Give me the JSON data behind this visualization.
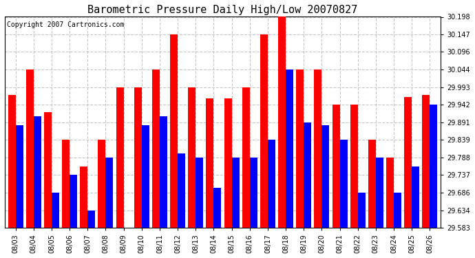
{
  "title": "Barometric Pressure Daily High/Low 20070827",
  "copyright": "Copyright 2007 Cartronics.com",
  "dates": [
    "08/03",
    "08/04",
    "08/05",
    "08/06",
    "08/07",
    "08/08",
    "08/09",
    "08/10",
    "08/11",
    "08/12",
    "08/13",
    "08/14",
    "08/15",
    "08/16",
    "08/17",
    "08/18",
    "08/19",
    "08/20",
    "08/21",
    "08/22",
    "08/23",
    "08/24",
    "08/25",
    "08/26"
  ],
  "highs": [
    29.97,
    30.044,
    29.921,
    29.839,
    29.762,
    29.839,
    29.993,
    29.993,
    30.044,
    30.147,
    29.993,
    29.96,
    29.96,
    29.993,
    30.147,
    30.198,
    30.044,
    30.044,
    29.942,
    29.942,
    29.839,
    29.788,
    29.965,
    29.97
  ],
  "lows": [
    29.883,
    29.908,
    29.686,
    29.737,
    29.634,
    29.788,
    29.583,
    29.883,
    29.908,
    29.8,
    29.788,
    29.7,
    29.788,
    29.788,
    29.839,
    30.044,
    29.891,
    29.883,
    29.839,
    29.686,
    29.788,
    29.686,
    29.762,
    29.942
  ],
  "high_color": "#ff0000",
  "low_color": "#0000ff",
  "bg_color": "#ffffff",
  "plot_bg": "#ffffff",
  "grid_color": "#c0c0c0",
  "ymin": 29.583,
  "ymax": 30.198,
  "yticks": [
    29.583,
    29.634,
    29.686,
    29.737,
    29.788,
    29.839,
    29.891,
    29.942,
    29.993,
    30.044,
    30.096,
    30.147,
    30.198
  ],
  "title_fontsize": 11,
  "tick_fontsize": 7,
  "copyright_fontsize": 7,
  "bar_width": 0.42,
  "figwidth": 6.9,
  "figheight": 3.75
}
